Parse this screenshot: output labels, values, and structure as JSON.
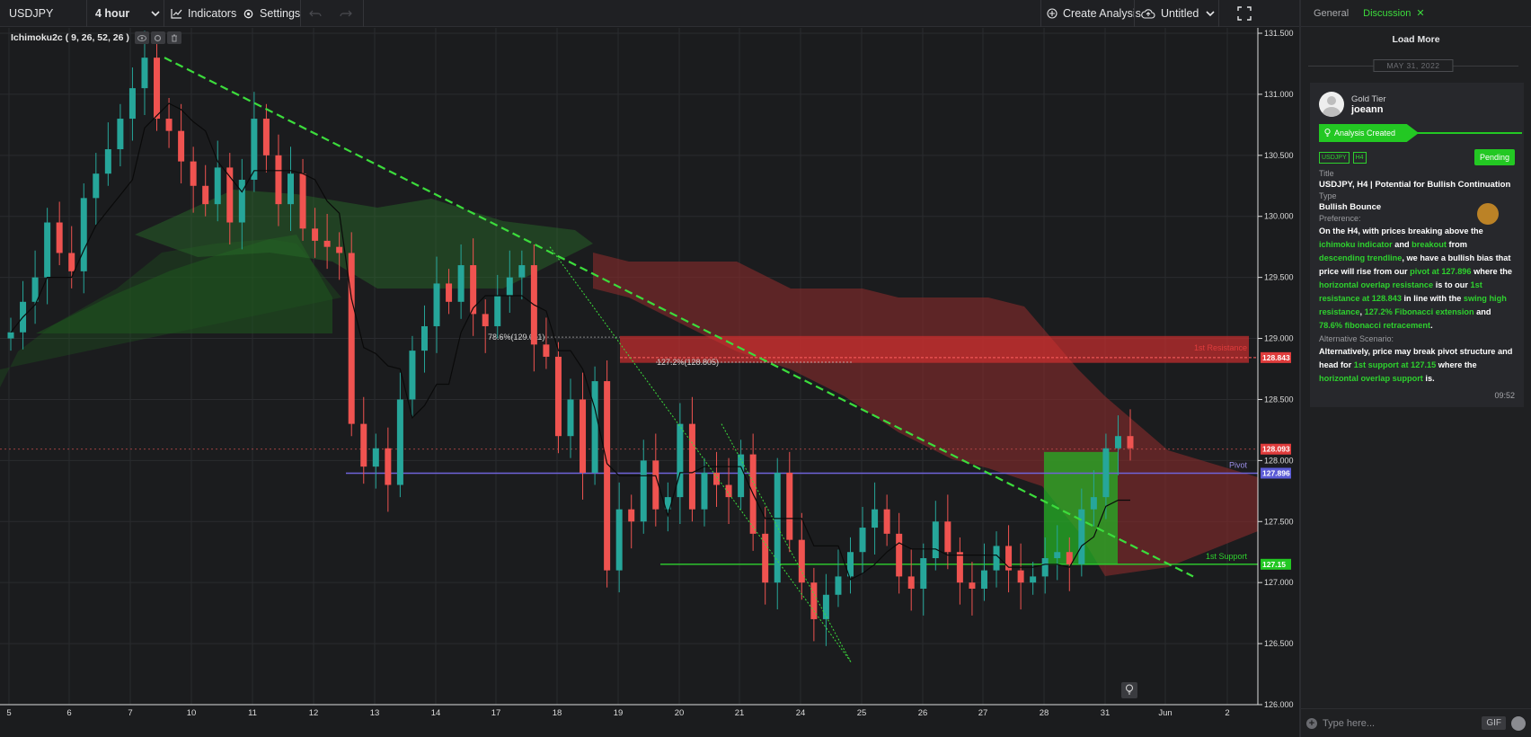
{
  "toolbar": {
    "symbol": "USDJPY",
    "timeframe": "4 hour",
    "indicators_label": "Indicators",
    "settings_label": "Settings",
    "create_analysis_label": "Create Analysis",
    "layout_name": "Untitled"
  },
  "indicator_legend": {
    "text": "Ichimoku2c ( 9, 26, 52, 26 )"
  },
  "chart_data": {
    "type": "candlestick",
    "symbol": "USDJPY",
    "timeframe": "4 hour",
    "ylim": [
      126.0,
      131.5
    ],
    "y_ticks": [
      "131.500",
      "131.000",
      "130.500",
      "130.000",
      "129.500",
      "129.000",
      "128.500",
      "128.000",
      "127.500",
      "127.000",
      "126.500",
      "126.000"
    ],
    "x_ticks": [
      "5",
      "6",
      "7",
      "10",
      "11",
      "12",
      "13",
      "14",
      "17",
      "18",
      "19",
      "20",
      "21",
      "24",
      "25",
      "26",
      "27",
      "28",
      "31",
      "Jun",
      "2"
    ],
    "levels": [
      {
        "name": "1st Resistance",
        "value": 128.843,
        "label": "128.843",
        "color": "#e03c3c"
      },
      {
        "name": "Pivot",
        "value": 127.896,
        "label": "127.896",
        "color": "#6f63d9"
      },
      {
        "name": "1st Support",
        "value": 127.15,
        "label": "127.15",
        "color": "#2ed12e"
      }
    ],
    "current_price": {
      "value": 128.093,
      "label": "128.093"
    },
    "fib_labels": [
      {
        "text": "78.6%(129.011)",
        "value": 129.011
      },
      {
        "text": "127.2%(128.805)",
        "value": 128.805
      }
    ],
    "candles_close": [
      129.05,
      129.3,
      129.5,
      129.95,
      129.7,
      129.55,
      130.15,
      130.35,
      130.55,
      130.8,
      131.05,
      131.3,
      130.8,
      130.7,
      130.45,
      130.25,
      130.1,
      130.4,
      129.95,
      130.3,
      130.8,
      130.5,
      130.1,
      130.35,
      129.9,
      129.8,
      129.75,
      129.7,
      128.3,
      127.95,
      128.1,
      127.8,
      128.5,
      128.9,
      129.1,
      129.45,
      129.3,
      129.6,
      129.2,
      129.1,
      129.35,
      129.5,
      129.6,
      128.95,
      128.85,
      128.2,
      128.5,
      127.9,
      128.65,
      127.1,
      127.6,
      127.5,
      128.0,
      127.6,
      127.7,
      128.3,
      127.6,
      127.9,
      127.8,
      127.7,
      128.05,
      127.4,
      127.0,
      127.9,
      127.35,
      127.0,
      126.7,
      126.9,
      127.05,
      127.25,
      127.45,
      127.6,
      127.4,
      127.05,
      126.95,
      127.2,
      127.5,
      127.25,
      127.0,
      126.95,
      127.1,
      127.3,
      127.1,
      127.0,
      127.05,
      127.2,
      127.25,
      127.15,
      127.6,
      127.7,
      128.1,
      128.2,
      128.1
    ]
  },
  "panel": {
    "tabs": [
      {
        "label": "General"
      },
      {
        "label": "Discussion"
      }
    ],
    "load_more": "Load More",
    "date": "MAY 31, 2022",
    "post": {
      "tier": "Gold Tier",
      "user": "joeann",
      "status": "Analysis Created",
      "tags": [
        "USDJPY",
        "H4"
      ],
      "pending": "Pending",
      "title_label": "Title",
      "title": "USDJPY, H4 | Potential for Bullish Continuation",
      "type_label": "Type",
      "type": "Bullish Bounce",
      "preference_label": "Preference:",
      "preference_text": "On the H4, with prices breaking above the ichimoku indicator and breakout from descending trendline, we have a bullish bias that price will rise from our pivot at 127.896 where the horizontal overlap resistance is to our 1st resistance at 128.843 in line with the swing high resistance, 127.2% Fibonacci extension and 78.6% fibonacci retracement.",
      "alt_label": "Alternative Scenario:",
      "alt_text": "Alternatively, price may break pivot structure and head for 1st support at 127.15 where the horizontal overlap support is.",
      "time": "09:52"
    },
    "message_placeholder": "Type here...",
    "gif_label": "GIF"
  }
}
